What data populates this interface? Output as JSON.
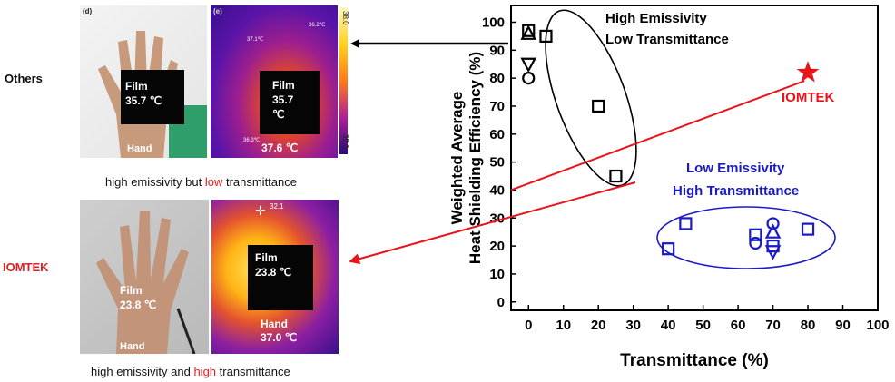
{
  "left": {
    "row_labels": {
      "others": "Others",
      "iomtek": "IOMTEK"
    },
    "top_row": {
      "panel_d_letter": "(d)",
      "panel_e_letter": "(e)",
      "photo_film": [
        "Film",
        "35.7 ℃"
      ],
      "photo_hand": "Hand",
      "thermal_film": [
        "Film",
        "35.7",
        "℃"
      ],
      "thermal_hand_temp": "37.6 ℃",
      "thermal_small_labels": [
        "37.1℃",
        "36.2℃",
        "36.3℃",
        "38.0"
      ],
      "colorbar_labels": [
        "38.0",
        "35.0"
      ],
      "caption_pre": "high emissivity but ",
      "caption_hl": "low",
      "caption_post": " transmittance"
    },
    "bottom_row": {
      "photo_film": [
        "Film",
        "23.8 ℃"
      ],
      "photo_hand": "Hand",
      "thermal_film": [
        "Film",
        "23.8 ℃"
      ],
      "thermal_hand": [
        "Hand",
        "37.0 ℃"
      ],
      "thermal_small_label": "32.1",
      "caption_pre": "high emissivity and ",
      "caption_hl": "high",
      "caption_post": " transmittance"
    }
  },
  "chart_data": {
    "type": "scatter",
    "xlabel": "Transmittance (%)",
    "ylabel_lines": [
      "Weighted Average",
      "Heat Shielding Efficiency (%)"
    ],
    "xlim": [
      -5,
      100
    ],
    "ylim": [
      -3,
      106
    ],
    "x_ticks": [
      0,
      10,
      20,
      30,
      40,
      50,
      60,
      70,
      80,
      90,
      100
    ],
    "y_ticks": [
      0,
      10,
      20,
      30,
      40,
      50,
      60,
      70,
      80,
      90,
      100
    ],
    "groups": [
      {
        "label_lines": [
          "High Emissivity",
          "Low Transmittance"
        ],
        "color": "#000000",
        "points": [
          {
            "x": 0,
            "y": 97,
            "marker": "square"
          },
          {
            "x": 0,
            "y": 96,
            "marker": "triangle-up"
          },
          {
            "x": 5,
            "y": 95,
            "marker": "square"
          },
          {
            "x": 0,
            "y": 85,
            "marker": "triangle-down"
          },
          {
            "x": 0,
            "y": 80,
            "marker": "circle"
          },
          {
            "x": 20,
            "y": 70,
            "marker": "square"
          },
          {
            "x": 25,
            "y": 45,
            "marker": "square"
          }
        ]
      },
      {
        "label_lines": [
          "Low Emissivity",
          "High Transmittance"
        ],
        "color": "#1a1ac8",
        "points": [
          {
            "x": 40,
            "y": 19,
            "marker": "square"
          },
          {
            "x": 45,
            "y": 28,
            "marker": "square"
          },
          {
            "x": 65,
            "y": 24,
            "marker": "square"
          },
          {
            "x": 65,
            "y": 21,
            "marker": "circle"
          },
          {
            "x": 70,
            "y": 28,
            "marker": "circle"
          },
          {
            "x": 70,
            "y": 25,
            "marker": "triangle-up"
          },
          {
            "x": 70,
            "y": 20,
            "marker": "square"
          },
          {
            "x": 70,
            "y": 18,
            "marker": "triangle-down"
          },
          {
            "x": 80,
            "y": 26,
            "marker": "square"
          }
        ]
      }
    ],
    "highlight": {
      "label": "IOMTEK",
      "x": 80,
      "y": 82,
      "marker": "star",
      "color": "#e8141c"
    },
    "trend_line": {
      "x": [
        -5,
        79
      ],
      "y": [
        40,
        79
      ],
      "color": "#e8141c"
    }
  }
}
